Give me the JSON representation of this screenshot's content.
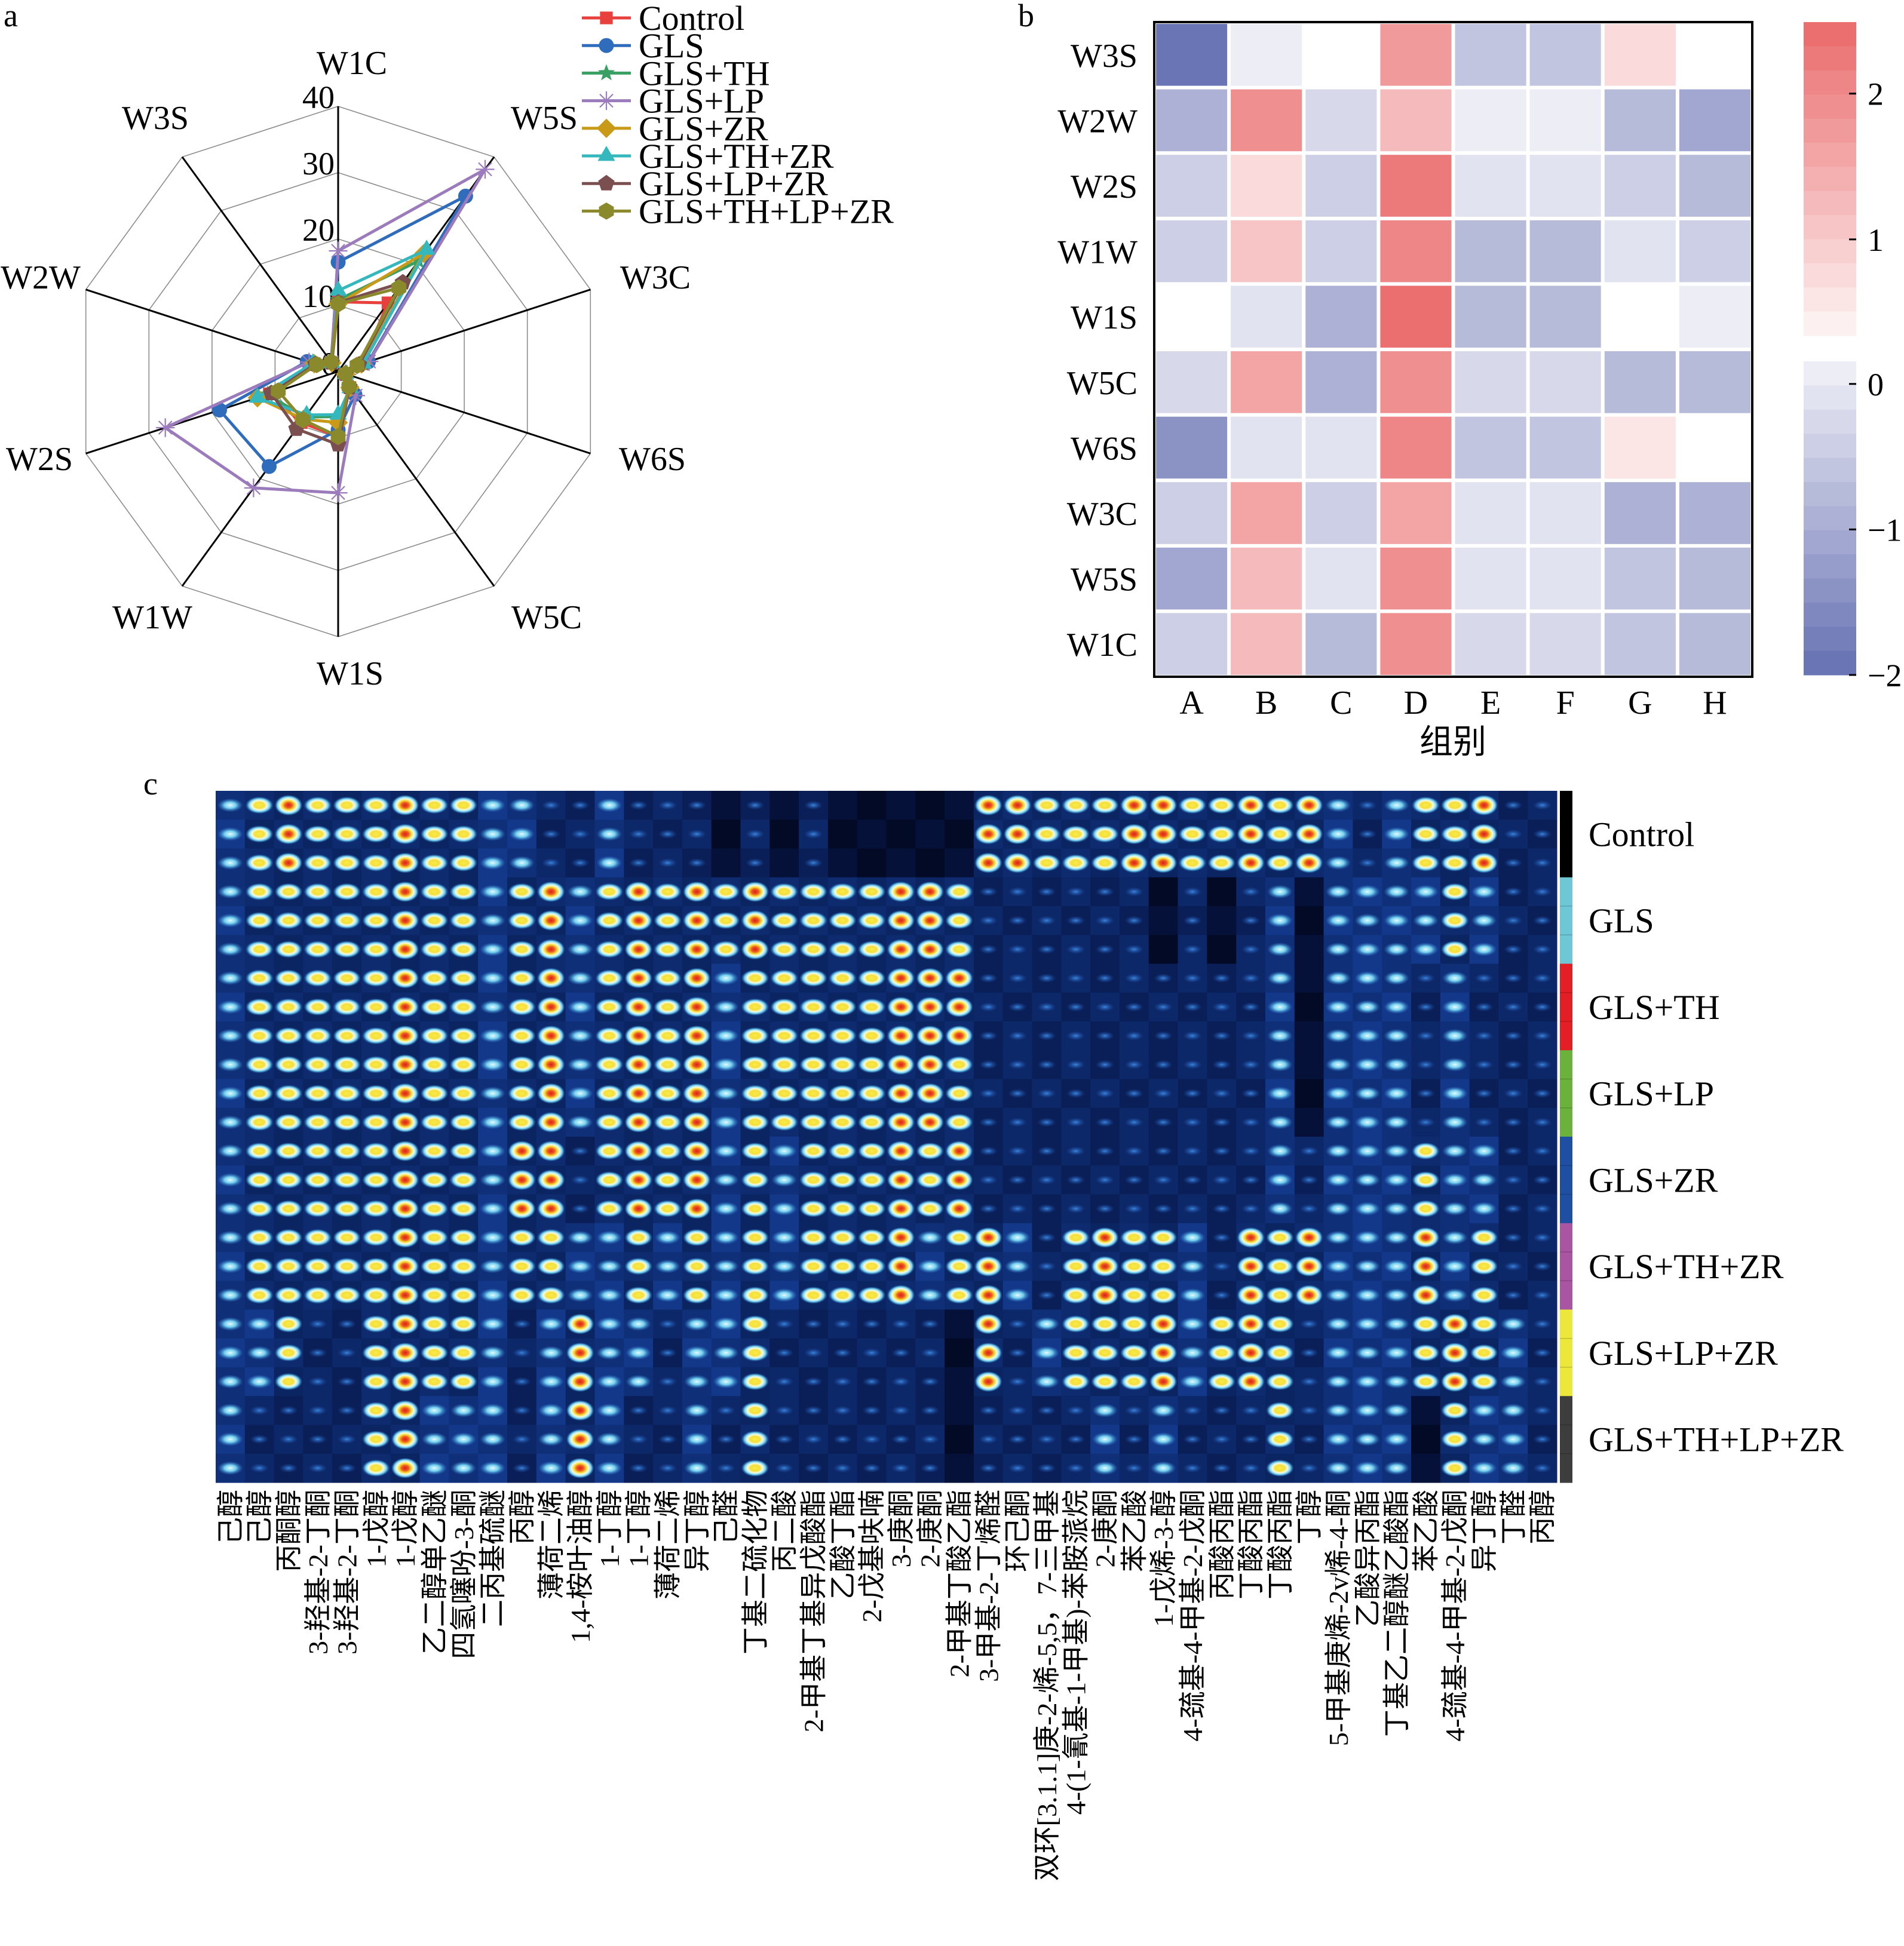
{
  "panels": {
    "a": "a",
    "b": "b",
    "c": "c"
  },
  "chart_data": [
    {
      "panel": "a",
      "type": "radar",
      "title": "",
      "axes": [
        "W1C",
        "W5S",
        "W3C",
        "W6S",
        "W5C",
        "W1S",
        "W1W",
        "W2S",
        "W2W",
        "W3S"
      ],
      "rlim": [
        0,
        40
      ],
      "r_ticks": [
        0,
        10,
        20,
        30,
        40
      ],
      "r_tick_labels": [
        "0",
        "10",
        "20",
        "30",
        "40"
      ],
      "grid": true,
      "legend": "top-right",
      "series": [
        {
          "name": "Control",
          "color": "#E8403C",
          "marker": "square",
          "values": [
            10.5,
            12.8,
            3.8,
            1.2,
            3.0,
            9.8,
            9.5,
            10.9,
            3.8,
            1.6
          ]
        },
        {
          "name": "GLS",
          "color": "#2F6CBB",
          "marker": "circle",
          "values": [
            16.5,
            32.7,
            4.8,
            1.3,
            4.3,
            8.8,
            17.7,
            18.8,
            4.9,
            1.8
          ]
        },
        {
          "name": "GLS+TH",
          "color": "#3A9F63",
          "marker": "star",
          "values": [
            10.8,
            20.6,
            3.9,
            1.2,
            3.2,
            6.8,
            8.5,
            11.2,
            4.0,
            1.6
          ]
        },
        {
          "name": "GLS+LP",
          "color": "#9C7BBC",
          "marker": "asterisk",
          "values": [
            18.2,
            37.7,
            4.9,
            1.4,
            4.5,
            18.3,
            21.7,
            27.4,
            4.6,
            1.7
          ]
        },
        {
          "name": "GLS+ZR",
          "color": "#C89A17",
          "marker": "diamond",
          "values": [
            10.2,
            22.0,
            3.7,
            1.2,
            3.0,
            7.7,
            8.9,
            12.8,
            3.8,
            1.6
          ]
        },
        {
          "name": "GLS+TH+ZR",
          "color": "#35B7BE",
          "marker": "triangle",
          "values": [
            12.2,
            22.7,
            4.0,
            1.2,
            3.1,
            6.5,
            8.1,
            12.8,
            4.0,
            1.6
          ]
        },
        {
          "name": "GLS+LP+ZR",
          "color": "#7B4E4F",
          "marker": "pentagon",
          "values": [
            10.4,
            16.6,
            3.3,
            1.2,
            2.9,
            11.0,
            10.7,
            10.6,
            3.6,
            1.7
          ]
        },
        {
          "name": "GLS+TH+LP+ZR",
          "color": "#8A8A2C",
          "marker": "hexagon",
          "values": [
            10.2,
            15.6,
            3.0,
            1.15,
            2.8,
            9.8,
            9.0,
            9.5,
            3.4,
            1.8
          ]
        }
      ]
    },
    {
      "panel": "b",
      "type": "heatmap",
      "title": "",
      "rows": [
        "W3S",
        "W2W",
        "W2S",
        "W1W",
        "W1S",
        "W5C",
        "W6S",
        "W3C",
        "W5S",
        "W1C"
      ],
      "columns": [
        "A",
        "B",
        "C",
        "D",
        "E",
        "F",
        "G",
        "H"
      ],
      "xlabel": "组别",
      "ylabel": "",
      "values": [
        [
          -1.95,
          0.1,
          0.25,
          1.74,
          -0.52,
          -0.52,
          0.75,
          0.25
        ],
        [
          -0.97,
          1.84,
          -0.26,
          1.2,
          0.1,
          0.1,
          -0.69,
          -1.04
        ],
        [
          -0.5,
          0.71,
          -0.5,
          2.18,
          -0.17,
          -0.17,
          -0.47,
          -0.75
        ],
        [
          -0.47,
          1.16,
          -0.45,
          2.04,
          -0.78,
          -0.72,
          -0.12,
          -0.47
        ],
        [
          0.25,
          -0.15,
          -0.84,
          2.43,
          -0.8,
          -0.74,
          0.25,
          0.08
        ],
        [
          -0.2,
          1.56,
          -0.86,
          1.95,
          -0.18,
          -0.18,
          -0.69,
          -0.69
        ],
        [
          -1.37,
          -0.06,
          -0.17,
          2.04,
          -0.52,
          -0.53,
          0.56,
          0.25
        ],
        [
          -0.37,
          1.57,
          -0.5,
          1.5,
          -0.04,
          -0.04,
          -0.84,
          -0.84
        ],
        [
          -1.17,
          1.2,
          -0.17,
          1.9,
          -0.09,
          -0.09,
          -0.67,
          -0.78
        ],
        [
          -0.45,
          1.23,
          -0.69,
          1.9,
          -0.18,
          -0.18,
          -0.67,
          -0.8
        ]
      ],
      "colorbar": {
        "positive": {
          "min": 0.34,
          "max": 2.49,
          "low_color": "#FDF5F5",
          "high_color": "#EB6A6B",
          "levels": 13
        },
        "negative": {
          "min": -2.0,
          "max": 0.155,
          "low_color": "#6570B2",
          "high_color": "#F2F2F8",
          "levels": 13
        },
        "ticks": [
          2,
          1,
          0,
          -1,
          -2
        ],
        "tick_labels": [
          "2",
          "1",
          "0",
          "−1",
          "−2"
        ],
        "placement": "right"
      }
    },
    {
      "panel": "c",
      "type": "heatmap",
      "title": "",
      "columns": [
        "己醇",
        "己醇",
        "丙酮醇",
        "3-羟基-2-丁酮",
        "3-羟基-2-丁酮",
        "1-戊醇",
        "1-戊醇",
        "乙二醇单乙醚",
        "四氢噻吩-3-酮",
        "二丙基硫醚",
        "丙醇",
        "薄荷二烯",
        "1,4-桉叶油醇",
        "1-丁醇",
        "1-丁醇",
        "薄荷二烯",
        "异丁醇",
        "己醛",
        "丁基二硫化物",
        "丙二酸",
        "2-甲基丁基异戊酸酯",
        "乙酸丁酯",
        "2-戊基呋喃",
        "3-庚酮",
        "2-庚酮",
        "2-甲基丁酸乙酯",
        "3-甲基-2-丁烯醛",
        "环己酮",
        "双环[3.1.1]庚-2-烯-5,5，7-三甲基",
        "4-(1-氰基-1-甲基)-苯胺蒎烷",
        "2-庚酮",
        "苯乙酸",
        "1-戊烯-3-醇",
        "4-巯基-4-甲基-2-戊酮",
        "丙酸丙酯",
        "丁酸丙酯",
        "丁酸丙酯",
        "丁醇",
        "5-甲基庚烯-2v烯-4-酮",
        "乙酸异丙酯",
        "丁基乙二醇醚乙酸酯",
        "苯乙酸",
        "4-巯基-4-甲基-2-戊酮",
        "异丁醇",
        "丁醛",
        "丙醇"
      ],
      "groups": [
        {
          "name": "Control",
          "color": "#000000"
        },
        {
          "name": "GLS",
          "color": "#6EC7D5"
        },
        {
          "name": "GLS+TH",
          "color": "#E31E24"
        },
        {
          "name": "GLS+LP",
          "color": "#6AB23C"
        },
        {
          "name": "GLS+ZR",
          "color": "#1E4FA2"
        },
        {
          "name": "GLS+TH+ZR",
          "color": "#A955A2"
        },
        {
          "name": "GLS+LP+ZR",
          "color": "#EBE83A"
        },
        {
          "name": "GLS+TH+LP+ZR",
          "color": "#3D3D3D"
        }
      ],
      "replicates_per_group": 3,
      "value_range": [
        0,
        4
      ],
      "colormap": [
        "#030A26",
        "#1E5BC6",
        "#6FD0EE",
        "#F4E03A",
        "#D9221B"
      ],
      "values": [
        [
          2,
          3,
          4,
          3,
          3,
          3,
          4,
          3,
          3,
          2,
          2,
          1,
          1,
          2,
          1,
          1,
          1,
          0,
          1,
          0,
          1,
          0,
          0,
          0,
          0,
          0,
          4,
          4,
          3,
          3,
          3,
          4,
          4,
          3,
          3,
          4,
          3,
          4,
          2,
          1,
          2,
          3,
          3,
          4,
          1,
          1
        ],
        [
          2,
          3,
          3,
          3,
          3,
          3,
          4,
          3,
          3,
          2,
          3,
          4,
          2,
          3,
          4,
          3,
          4,
          3,
          4,
          3,
          3,
          3,
          3,
          4,
          4,
          3,
          1,
          1,
          1,
          1,
          1,
          1,
          0,
          1,
          0,
          1,
          2,
          0,
          2,
          2,
          2,
          2,
          3,
          2,
          1,
          1
        ],
        [
          2,
          3,
          3,
          3,
          3,
          3,
          4,
          3,
          3,
          2,
          3,
          4,
          2,
          3,
          4,
          3,
          4,
          2,
          3,
          3,
          3,
          3,
          3,
          4,
          4,
          4,
          1,
          1,
          1,
          1,
          1,
          1,
          1,
          1,
          1,
          1,
          2,
          0,
          2,
          2,
          2,
          1,
          2,
          1,
          1,
          1
        ],
        [
          2,
          3,
          3,
          3,
          3,
          3,
          4,
          3,
          3,
          2,
          3,
          4,
          2,
          3,
          4,
          3,
          4,
          2,
          3,
          3,
          3,
          3,
          3,
          4,
          4,
          3,
          1,
          1,
          1,
          1,
          1,
          1,
          1,
          1,
          1,
          1,
          2,
          0,
          2,
          2,
          2,
          1,
          2,
          1,
          1,
          1
        ],
        [
          2,
          3,
          3,
          3,
          3,
          3,
          4,
          3,
          3,
          2,
          4,
          4,
          1,
          3,
          4,
          3,
          4,
          2,
          3,
          2,
          3,
          3,
          3,
          4,
          3,
          4,
          1,
          1,
          1,
          1,
          1,
          1,
          1,
          1,
          1,
          1,
          2,
          1,
          2,
          2,
          2,
          3,
          2,
          2,
          1,
          1
        ],
        [
          2,
          3,
          3,
          3,
          3,
          3,
          4,
          3,
          3,
          2,
          3,
          3,
          2,
          2,
          3,
          2,
          3,
          2,
          3,
          2,
          3,
          3,
          3,
          4,
          2,
          3,
          4,
          2,
          1,
          3,
          4,
          3,
          3,
          2,
          1,
          4,
          3,
          4,
          2,
          2,
          2,
          4,
          2,
          3,
          1,
          1
        ],
        [
          2,
          2,
          3,
          1,
          1,
          3,
          4,
          3,
          3,
          2,
          1,
          2,
          4,
          2,
          2,
          1,
          2,
          2,
          3,
          1,
          1,
          1,
          1,
          1,
          1,
          0,
          4,
          1,
          2,
          3,
          3,
          3,
          4,
          2,
          3,
          4,
          3,
          1,
          2,
          2,
          2,
          3,
          4,
          3,
          2,
          1
        ],
        [
          2,
          1,
          1,
          1,
          1,
          3,
          4,
          2,
          2,
          2,
          1,
          2,
          4,
          2,
          1,
          1,
          2,
          1,
          3,
          1,
          1,
          1,
          1,
          1,
          1,
          0,
          1,
          1,
          1,
          1,
          2,
          1,
          2,
          1,
          1,
          1,
          3,
          1,
          2,
          2,
          2,
          0,
          3,
          2,
          2,
          1
        ]
      ]
    }
  ]
}
